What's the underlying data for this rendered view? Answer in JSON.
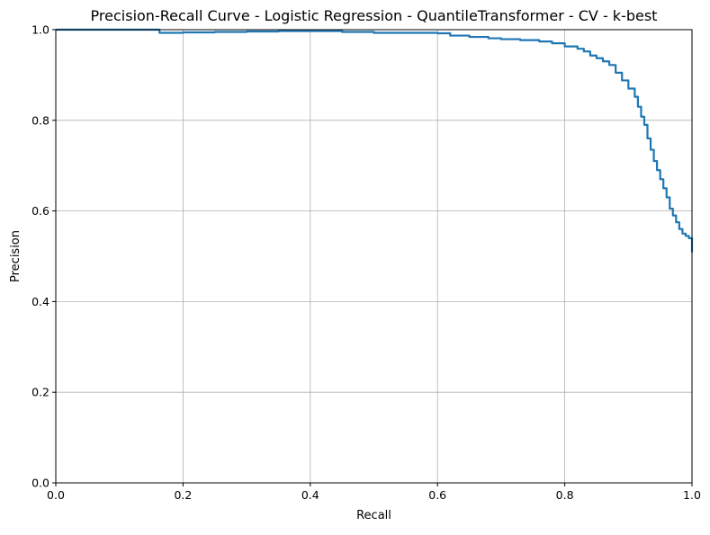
{
  "chart_data": {
    "type": "line",
    "title": "Precision-Recall Curve - Logistic Regression - QuantileTransformer - CV - k-best",
    "xlabel": "Recall",
    "ylabel": "Precision",
    "xlim": [
      0.0,
      1.0
    ],
    "ylim": [
      0.0,
      1.0
    ],
    "xticks": [
      "0.0",
      "0.2",
      "0.4",
      "0.6",
      "0.8",
      "1.0"
    ],
    "yticks": [
      "0.0",
      "0.2",
      "0.4",
      "0.6",
      "0.8",
      "1.0"
    ],
    "grid": true,
    "legend": "none",
    "series_color": "#1f77b4",
    "series": [
      {
        "x": [
          0.0,
          0.163,
          0.163,
          0.2,
          0.25,
          0.3,
          0.35,
          0.4,
          0.45,
          0.45,
          0.5,
          0.55,
          0.6,
          0.62,
          0.65,
          0.68,
          0.7,
          0.73,
          0.76,
          0.78,
          0.8,
          0.82,
          0.83,
          0.84,
          0.85,
          0.86,
          0.87,
          0.88,
          0.89,
          0.9,
          0.91,
          0.915,
          0.92,
          0.925,
          0.93,
          0.935,
          0.94,
          0.945,
          0.95,
          0.955,
          0.96,
          0.965,
          0.97,
          0.975,
          0.98,
          0.985,
          0.99,
          0.995,
          1.0,
          1.0,
          1.0
        ],
        "y": [
          1.0,
          1.0,
          0.993,
          0.994,
          0.995,
          0.996,
          0.997,
          0.997,
          0.998,
          0.995,
          0.993,
          0.993,
          0.992,
          0.987,
          0.984,
          0.981,
          0.979,
          0.977,
          0.974,
          0.97,
          0.963,
          0.958,
          0.952,
          0.943,
          0.937,
          0.93,
          0.922,
          0.905,
          0.888,
          0.87,
          0.852,
          0.83,
          0.808,
          0.79,
          0.76,
          0.735,
          0.71,
          0.69,
          0.67,
          0.65,
          0.63,
          0.605,
          0.59,
          0.575,
          0.56,
          0.55,
          0.545,
          0.54,
          0.535,
          0.52,
          0.51
        ]
      }
    ]
  }
}
